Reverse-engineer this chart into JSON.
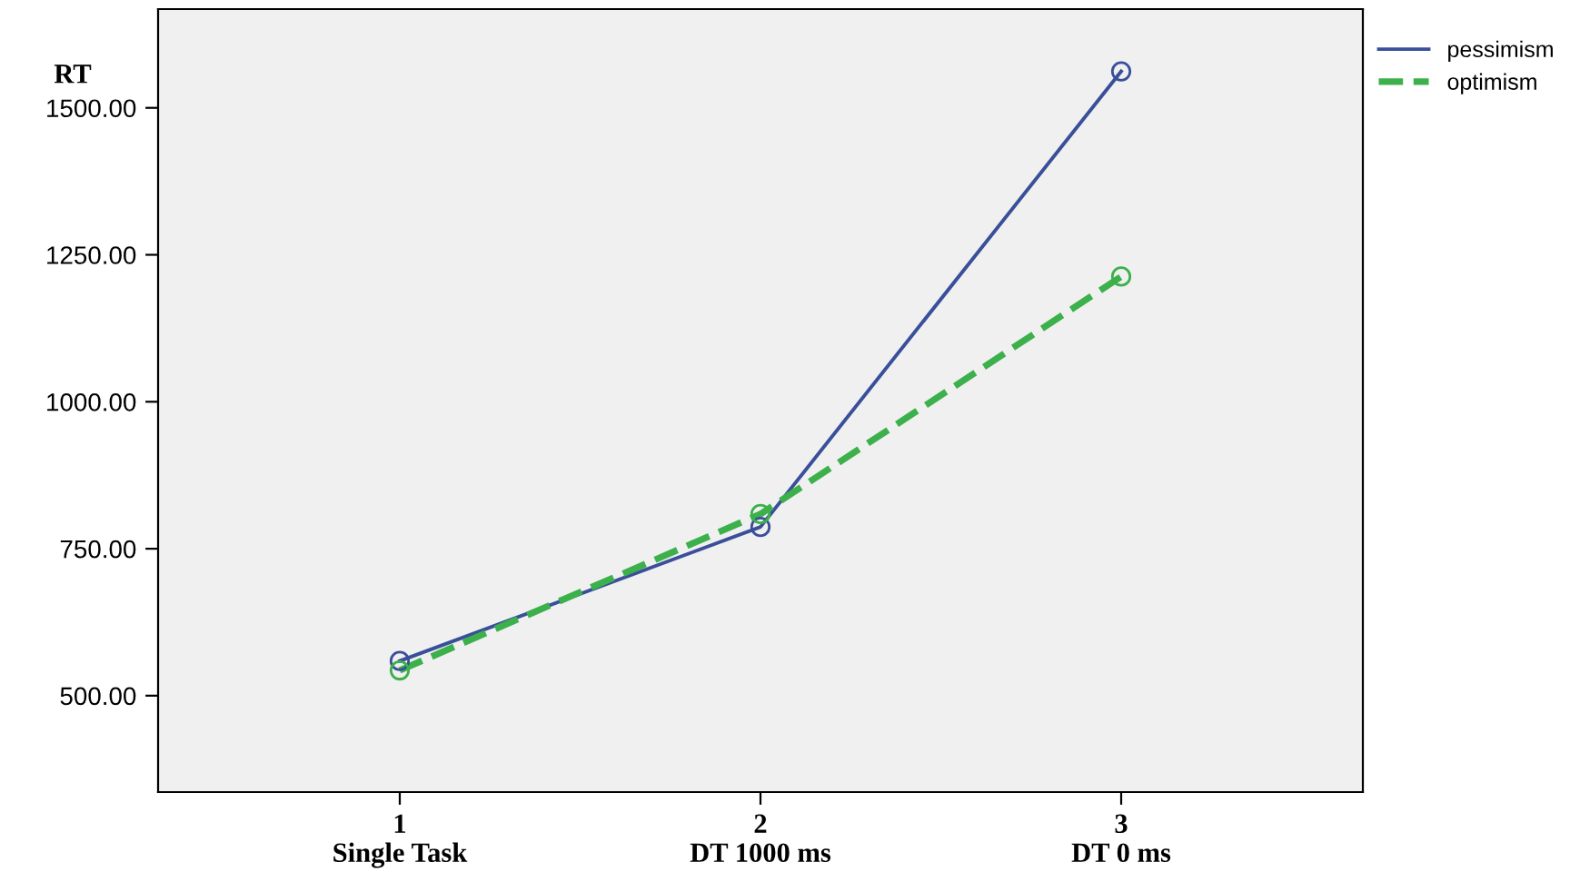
{
  "chart_data": {
    "type": "line",
    "ylabel": "RT",
    "categories": [
      "1\nSingle Task",
      "2\nDT 1000 ms",
      "3\nDT 0 ms"
    ],
    "ylim": [
      336,
      1668
    ],
    "yticks": [
      {
        "value": 500,
        "label": "500.00"
      },
      {
        "value": 750,
        "label": "750.00"
      },
      {
        "value": 1000,
        "label": "1000.00"
      },
      {
        "value": 1250,
        "label": "1250.00"
      },
      {
        "value": 1500,
        "label": "1500.00"
      }
    ],
    "marker": "circle",
    "grid": false,
    "legend": "top right",
    "series": [
      {
        "name": "pessimism",
        "color": "#3a4f9a",
        "line_style": "solid",
        "values": [
          559,
          787,
          1562
        ]
      },
      {
        "name": "optimism",
        "color": "#3cb04a",
        "line_style": "dashed",
        "values": [
          543,
          809,
          1213
        ]
      }
    ]
  }
}
